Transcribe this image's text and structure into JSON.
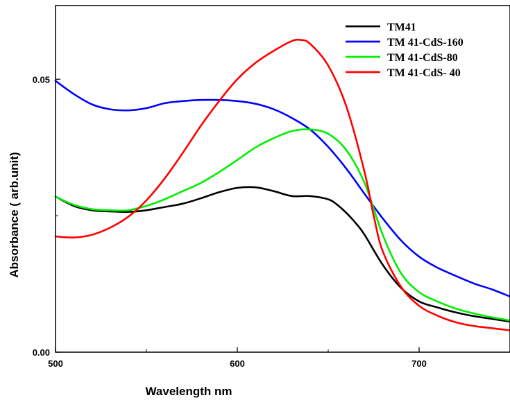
{
  "chart_data": {
    "type": "line",
    "xlabel": "Wavelength nm",
    "ylabel": "Absorbance ( arb.unit)",
    "xlim": [
      500,
      750
    ],
    "ylim": [
      0,
      0.0635
    ],
    "xticks": [
      500,
      600,
      700
    ],
    "xtick_labels": [
      "500",
      "600",
      "700"
    ],
    "yticks": [
      0,
      0.05
    ],
    "ytick_labels": [
      "0.00",
      "0.05"
    ],
    "grid": false,
    "legend_position": "top-right",
    "series": [
      {
        "name": "TM41",
        "color": "#000000",
        "x": [
          500,
          510,
          520,
          530,
          540,
          550,
          560,
          570,
          580,
          590,
          600,
          610,
          620,
          630,
          640,
          650,
          655,
          660,
          665,
          670,
          680,
          690,
          700,
          710,
          720,
          730,
          740,
          750
        ],
        "y": [
          0.0285,
          0.0268,
          0.026,
          0.0258,
          0.0257,
          0.026,
          0.0266,
          0.0272,
          0.0282,
          0.0293,
          0.0301,
          0.0302,
          0.0295,
          0.0286,
          0.0286,
          0.028,
          0.027,
          0.0255,
          0.0237,
          0.0215,
          0.016,
          0.0118,
          0.0093,
          0.0082,
          0.0073,
          0.0066,
          0.0061,
          0.0056
        ]
      },
      {
        "name": "TM 41-CdS-160",
        "color": "#0000ff",
        "x": [
          500,
          510,
          520,
          530,
          540,
          550,
          560,
          570,
          580,
          590,
          600,
          610,
          620,
          630,
          640,
          650,
          660,
          670,
          680,
          690,
          700,
          710,
          720,
          730,
          740,
          750
        ],
        "y": [
          0.0497,
          0.0473,
          0.0454,
          0.0445,
          0.0443,
          0.0447,
          0.0456,
          0.046,
          0.0462,
          0.0462,
          0.046,
          0.0455,
          0.0445,
          0.0429,
          0.0408,
          0.0376,
          0.0336,
          0.029,
          0.0245,
          0.0205,
          0.0175,
          0.0155,
          0.014,
          0.0126,
          0.0115,
          0.0102
        ]
      },
      {
        "name": "TM 41-CdS-80",
        "color": "#00ee00",
        "x": [
          500,
          510,
          520,
          530,
          540,
          550,
          560,
          570,
          580,
          590,
          600,
          610,
          620,
          630,
          640,
          650,
          660,
          670,
          680,
          690,
          700,
          710,
          720,
          730,
          740,
          750
        ],
        "y": [
          0.0285,
          0.027,
          0.0262,
          0.026,
          0.026,
          0.0268,
          0.028,
          0.0295,
          0.031,
          0.033,
          0.0352,
          0.0375,
          0.0392,
          0.0405,
          0.0408,
          0.04,
          0.037,
          0.031,
          0.0215,
          0.0145,
          0.011,
          0.0093,
          0.008,
          0.0071,
          0.0064,
          0.0058
        ]
      },
      {
        "name": "TM 41-CdS- 40",
        "color": "#ff0000",
        "x": [
          500,
          510,
          520,
          530,
          540,
          550,
          560,
          570,
          580,
          590,
          600,
          610,
          620,
          630,
          635,
          640,
          650,
          660,
          670,
          675,
          680,
          690,
          700,
          710,
          720,
          730,
          740,
          750
        ],
        "y": [
          0.0212,
          0.021,
          0.0215,
          0.0228,
          0.0248,
          0.0278,
          0.0318,
          0.0365,
          0.0415,
          0.046,
          0.05,
          0.053,
          0.0552,
          0.057,
          0.0572,
          0.0565,
          0.0525,
          0.045,
          0.033,
          0.025,
          0.0185,
          0.012,
          0.0085,
          0.0067,
          0.0055,
          0.0048,
          0.0044,
          0.004
        ]
      }
    ]
  }
}
